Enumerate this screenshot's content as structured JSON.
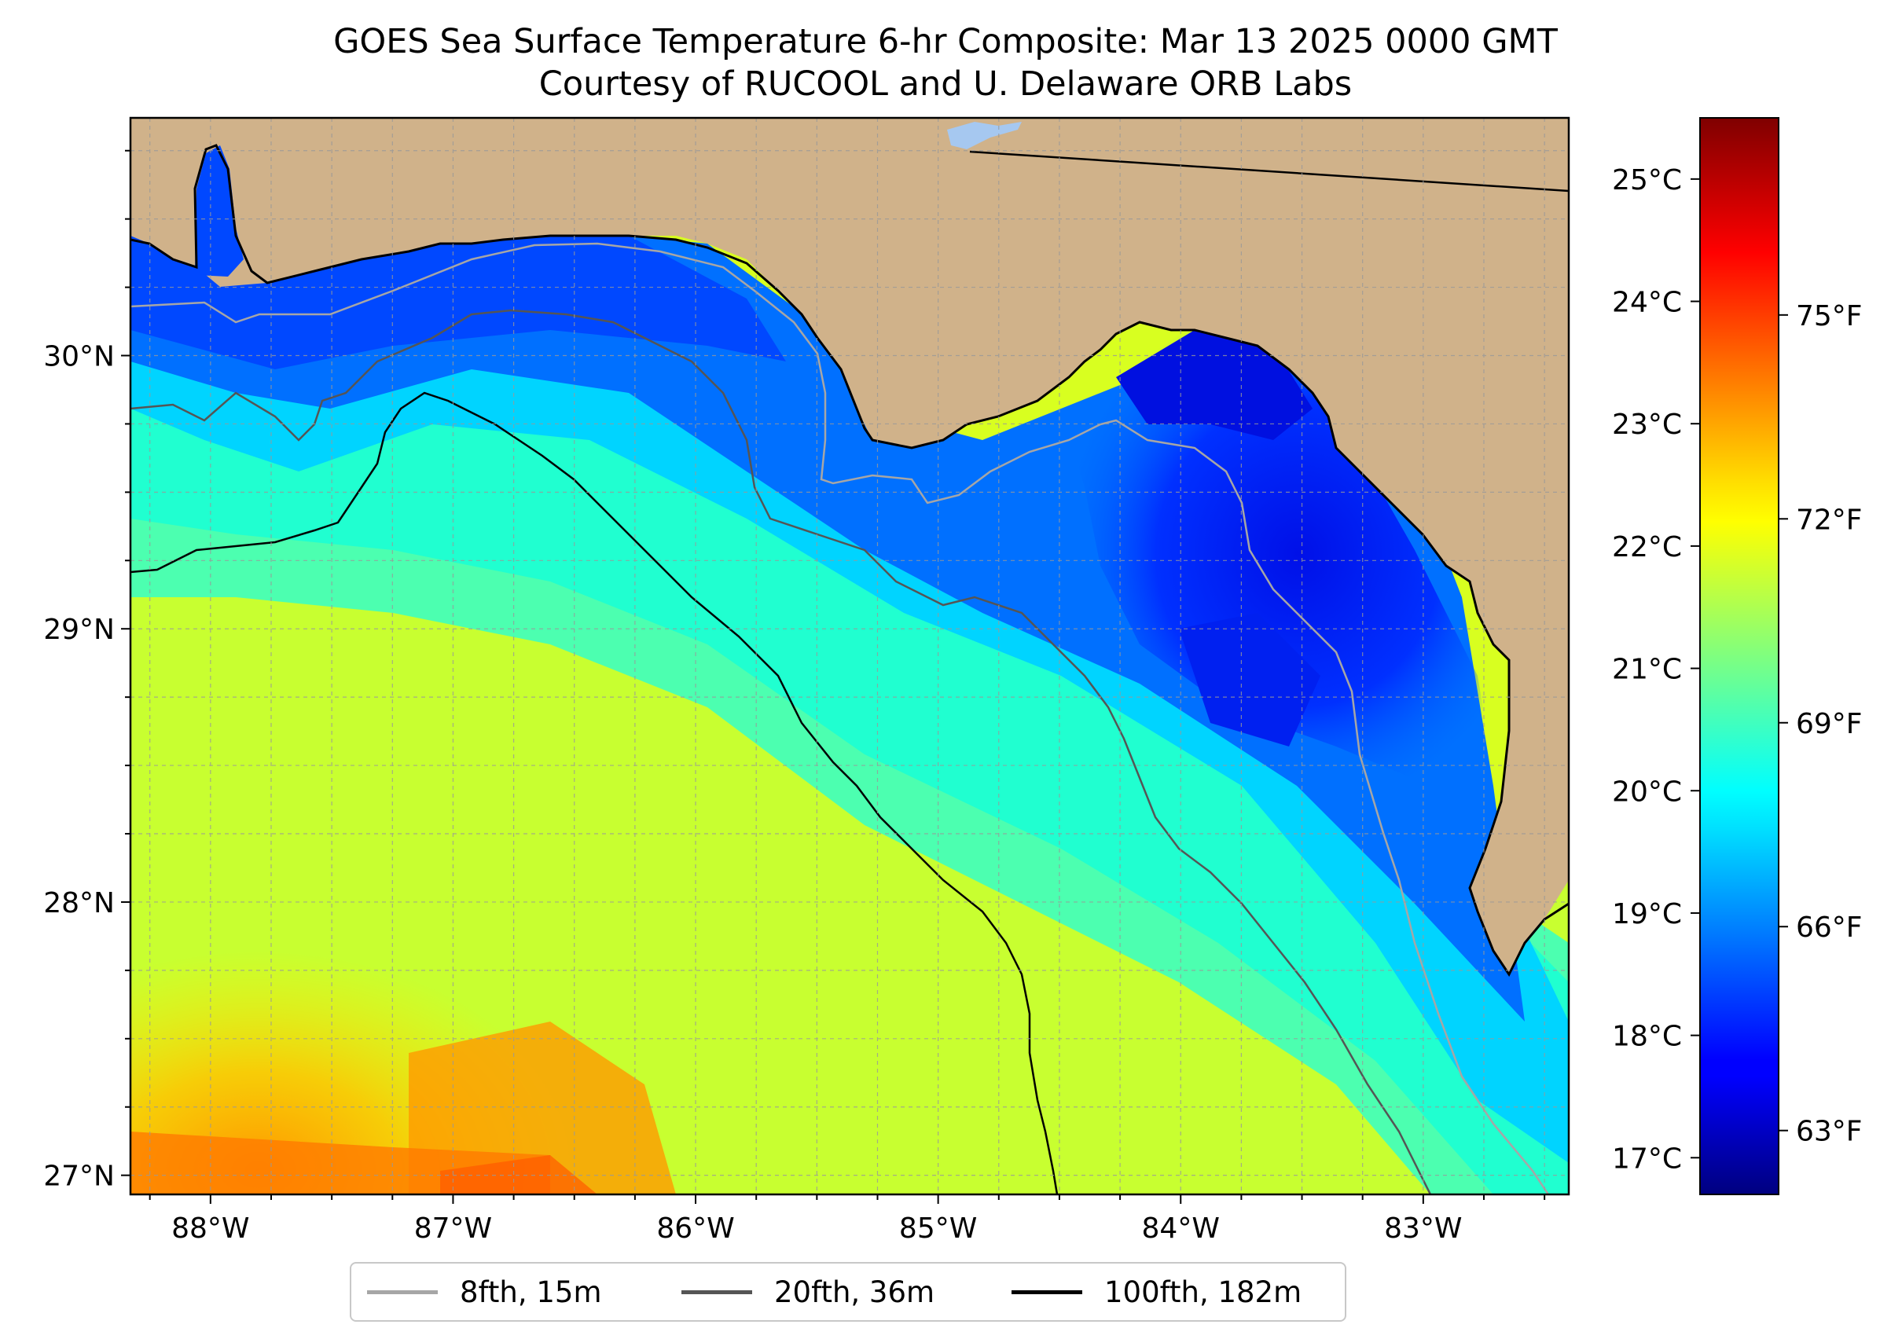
{
  "title": {
    "line1": "GOES Sea Surface Temperature 6-hr Composite: Mar 13 2025 0000 GMT",
    "line2": "Courtesy of RUCOOL and U. Delaware ORB Labs"
  },
  "map": {
    "lon_range": [
      -88.33,
      -82.4
    ],
    "lat_range": [
      26.93,
      30.87
    ],
    "longitude_ticks": [
      {
        "value": -88,
        "label": "88°W"
      },
      {
        "value": -87,
        "label": "87°W"
      },
      {
        "value": -86,
        "label": "86°W"
      },
      {
        "value": -85,
        "label": "85°W"
      },
      {
        "value": -84,
        "label": "84°W"
      },
      {
        "value": -83,
        "label": "83°W"
      }
    ],
    "latitude_ticks": [
      {
        "value": 27,
        "label": "27°N"
      },
      {
        "value": 28,
        "label": "28°N"
      },
      {
        "value": 29,
        "label": "29°N"
      },
      {
        "value": 30,
        "label": "30°N"
      }
    ],
    "grid": "dashed, every 0.25°",
    "colors": {
      "land": "#d0b28a",
      "coastline": "#000000",
      "grid": "#999999"
    }
  },
  "colorbar": {
    "colormap": "jet",
    "range_celsius": [
      16.7,
      25.5
    ],
    "celsius_ticks": [
      {
        "value": 17,
        "label": "17°C"
      },
      {
        "value": 18,
        "label": "18°C"
      },
      {
        "value": 19,
        "label": "19°C"
      },
      {
        "value": 20,
        "label": "20°C"
      },
      {
        "value": 21,
        "label": "21°C"
      },
      {
        "value": 22,
        "label": "22°C"
      },
      {
        "value": 23,
        "label": "23°C"
      },
      {
        "value": 24,
        "label": "24°C"
      },
      {
        "value": 25,
        "label": "25°C"
      }
    ],
    "fahrenheit_ticks": [
      {
        "value": 63,
        "label": "63°F"
      },
      {
        "value": 66,
        "label": "66°F"
      },
      {
        "value": 69,
        "label": "69°F"
      },
      {
        "value": 72,
        "label": "72°F"
      },
      {
        "value": 75,
        "label": "75°F"
      }
    ]
  },
  "legend": {
    "placement": "bottom-center",
    "items": [
      {
        "label": "8fth, 15m",
        "color": "#a6a6a6"
      },
      {
        "label": "20fth, 36m",
        "color": "#555555"
      },
      {
        "label": "100fth, 182m",
        "color": "#000000"
      }
    ]
  }
}
